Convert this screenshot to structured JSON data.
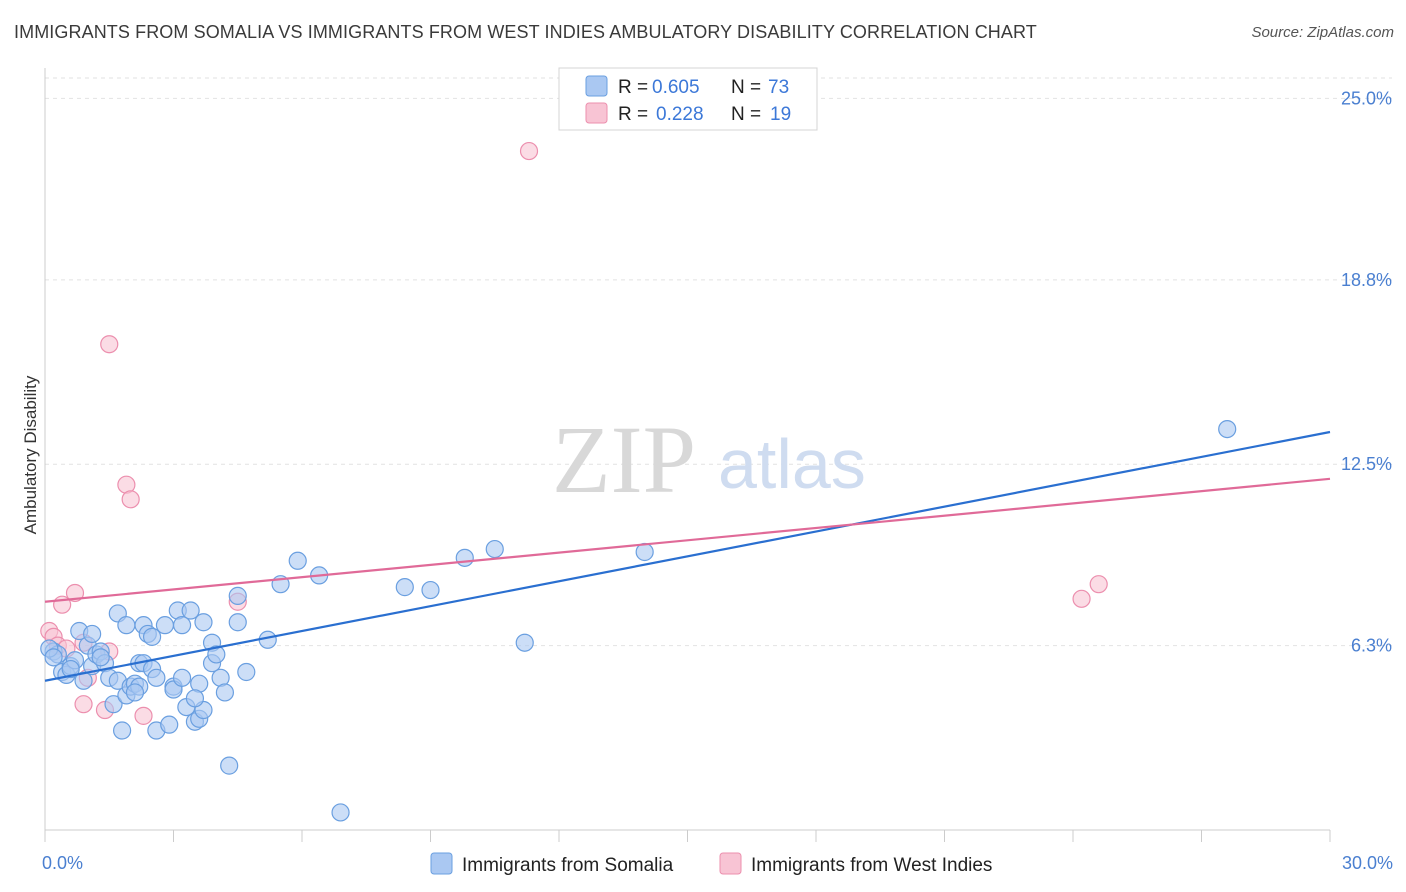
{
  "header": {
    "title": "IMMIGRANTS FROM SOMALIA VS IMMIGRANTS FROM WEST INDIES AMBULATORY DISABILITY CORRELATION CHART",
    "source": "Source: ZipAtlas.com"
  },
  "watermark": {
    "zip": "ZIP",
    "atlas": "atlas"
  },
  "colors": {
    "somalia_fill": "#aac8f2",
    "somalia_stroke": "#6a9fe0",
    "somalia_line": "#2a6fd0",
    "westindies_fill": "#f8c4d4",
    "westindies_stroke": "#ec8fae",
    "westindies_line": "#e06a98",
    "grid": "#e2e2e2",
    "tick_label": "#4a7fd0"
  },
  "chart_data": {
    "type": "scatter",
    "title": "IMMIGRANTS FROM SOMALIA VS IMMIGRANTS FROM WEST INDIES AMBULATORY DISABILITY CORRELATION CHART",
    "xlabel": "",
    "ylabel": "Ambulatory Disability",
    "xlim": [
      0,
      30
    ],
    "ylim": [
      0,
      25.8
    ],
    "x_tick_labels": [
      "0.0%",
      "30.0%"
    ],
    "y_ticks": [
      6.3,
      12.5,
      18.8,
      25.0
    ],
    "y_tick_labels": [
      "6.3%",
      "12.5%",
      "18.8%",
      "25.0%"
    ],
    "grid": true,
    "legend_position": "top-center",
    "legend": [
      {
        "r_label": "R =",
        "r_value": "0.605",
        "n_label": "N =",
        "n_value": "73"
      },
      {
        "r_label": "R =",
        "r_value": "0.228",
        "n_label": "N =",
        "n_value": "19"
      }
    ],
    "series": [
      {
        "name": "Immigrants from Somalia",
        "trend": {
          "x": [
            0,
            30
          ],
          "y": [
            5.1,
            13.6
          ]
        },
        "points": [
          [
            0.2,
            6.1
          ],
          [
            0.3,
            6.0
          ],
          [
            0.4,
            5.4
          ],
          [
            0.5,
            5.3
          ],
          [
            0.6,
            5.6
          ],
          [
            0.7,
            5.8
          ],
          [
            0.8,
            6.8
          ],
          [
            0.9,
            5.1
          ],
          [
            1.0,
            6.3
          ],
          [
            1.1,
            5.6
          ],
          [
            1.1,
            6.7
          ],
          [
            1.2,
            6.0
          ],
          [
            1.3,
            6.1
          ],
          [
            1.4,
            5.7
          ],
          [
            1.5,
            5.2
          ],
          [
            1.6,
            4.3
          ],
          [
            1.7,
            5.1
          ],
          [
            1.7,
            7.4
          ],
          [
            1.8,
            3.4
          ],
          [
            1.9,
            4.6
          ],
          [
            1.9,
            7.0
          ],
          [
            2.0,
            4.9
          ],
          [
            2.1,
            5.0
          ],
          [
            2.2,
            4.9
          ],
          [
            2.2,
            5.7
          ],
          [
            2.3,
            5.7
          ],
          [
            2.3,
            7.0
          ],
          [
            2.4,
            6.7
          ],
          [
            2.5,
            5.5
          ],
          [
            2.5,
            6.6
          ],
          [
            2.6,
            3.4
          ],
          [
            2.6,
            5.2
          ],
          [
            2.8,
            7.0
          ],
          [
            2.9,
            3.6
          ],
          [
            3.0,
            4.9
          ],
          [
            3.0,
            4.8
          ],
          [
            3.1,
            7.5
          ],
          [
            3.2,
            5.2
          ],
          [
            3.2,
            7.0
          ],
          [
            3.3,
            4.2
          ],
          [
            3.4,
            7.5
          ],
          [
            3.5,
            3.7
          ],
          [
            3.6,
            5.0
          ],
          [
            3.6,
            3.8
          ],
          [
            3.7,
            4.1
          ],
          [
            3.7,
            7.1
          ],
          [
            3.9,
            5.7
          ],
          [
            3.9,
            6.4
          ],
          [
            4.0,
            6.0
          ],
          [
            4.1,
            5.2
          ],
          [
            4.2,
            4.7
          ],
          [
            4.3,
            2.2
          ],
          [
            4.5,
            7.1
          ],
          [
            4.5,
            8.0
          ],
          [
            4.7,
            5.4
          ],
          [
            5.2,
            6.5
          ],
          [
            5.5,
            8.4
          ],
          [
            5.9,
            9.2
          ],
          [
            6.4,
            8.7
          ],
          [
            6.9,
            0.6
          ],
          [
            8.4,
            8.3
          ],
          [
            9.0,
            8.2
          ],
          [
            9.8,
            9.3
          ],
          [
            10.5,
            9.6
          ],
          [
            11.2,
            6.4
          ],
          [
            14.0,
            9.5
          ],
          [
            27.6,
            13.7
          ],
          [
            0.1,
            6.2
          ],
          [
            0.2,
            5.9
          ],
          [
            0.6,
            5.5
          ],
          [
            1.3,
            5.9
          ],
          [
            2.1,
            4.7
          ],
          [
            3.5,
            4.5
          ]
        ]
      },
      {
        "name": "Immigrants from West Indies",
        "trend": {
          "x": [
            0,
            30
          ],
          "y": [
            7.8,
            12.0
          ]
        },
        "points": [
          [
            0.1,
            6.8
          ],
          [
            0.2,
            6.6
          ],
          [
            0.3,
            6.3
          ],
          [
            0.4,
            7.7
          ],
          [
            0.5,
            6.2
          ],
          [
            0.7,
            8.1
          ],
          [
            0.9,
            6.4
          ],
          [
            0.9,
            4.3
          ],
          [
            1.0,
            5.2
          ],
          [
            1.4,
            4.1
          ],
          [
            1.5,
            6.1
          ],
          [
            1.5,
            16.6
          ],
          [
            1.9,
            11.8
          ],
          [
            2.0,
            11.3
          ],
          [
            2.3,
            3.9
          ],
          [
            4.5,
            7.8
          ],
          [
            11.3,
            23.2
          ],
          [
            24.2,
            7.9
          ],
          [
            24.6,
            8.4
          ]
        ]
      }
    ]
  },
  "bottom_legend": [
    {
      "label": "Immigrants from Somalia"
    },
    {
      "label": "Immigrants from West Indies"
    }
  ]
}
